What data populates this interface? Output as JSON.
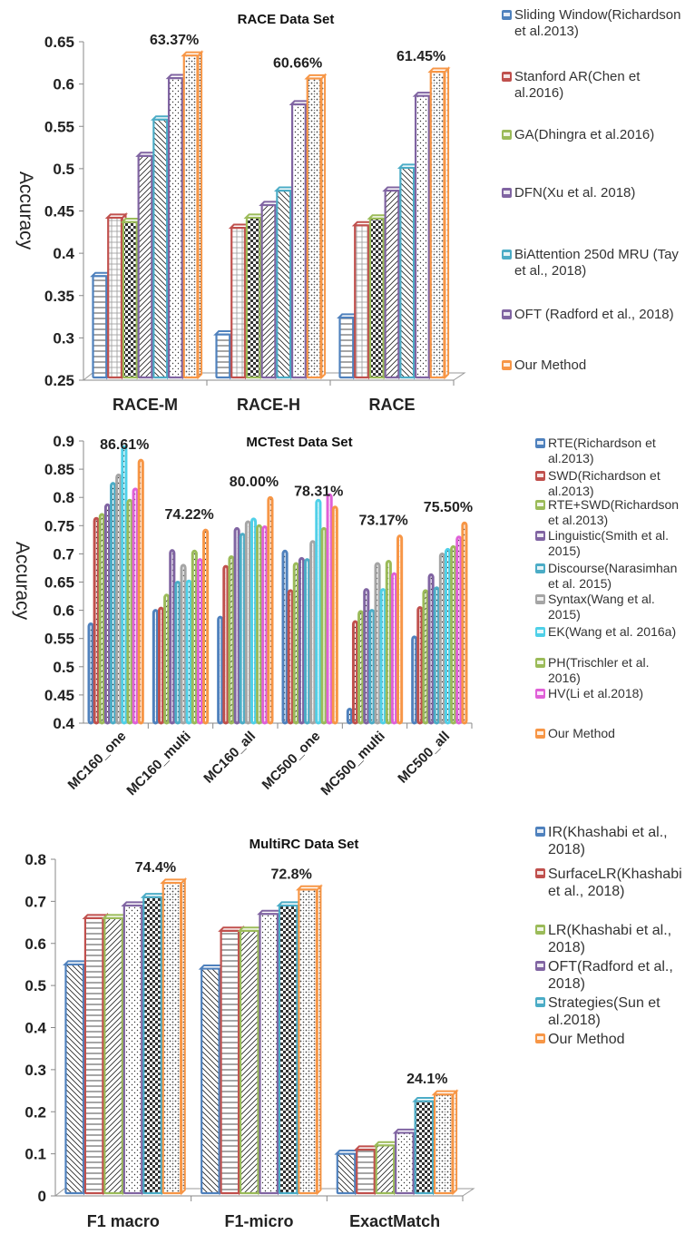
{
  "chart_data": [
    {
      "type": "bar",
      "title": "RACE Data Set",
      "ylabel": "Accuracy",
      "xlabel": "",
      "ylim": [
        0.25,
        0.65
      ],
      "yticks": [
        "0.25",
        "0.3",
        "0.35",
        "0.4",
        "0.45",
        "0.5",
        "0.55",
        "0.6",
        "0.65"
      ],
      "categories": [
        "RACE-M",
        "RACE-H",
        "RACE"
      ],
      "legend_position": "right",
      "grid": false,
      "series": [
        {
          "name": "Sliding Window(Richardson et al.2013)",
          "color": "#4f81bd",
          "values": [
            0.373,
            0.304,
            0.324
          ]
        },
        {
          "name": "Stanford AR(Chen et al.2016)",
          "color": "#c0504d",
          "values": [
            0.442,
            0.43,
            0.433
          ]
        },
        {
          "name": "GA(Dhingra et al.2016)",
          "color": "#9bbb59",
          "values": [
            0.437,
            0.442,
            0.441
          ]
        },
        {
          "name": "DFN(Xu et al. 2018)",
          "color": "#8064a2",
          "values": [
            0.515,
            0.457,
            0.474
          ]
        },
        {
          "name": "BiAttention 250d MRU (Tay et al., 2018)",
          "color": "#4bacc6",
          "values": [
            0.558,
            0.474,
            0.501
          ]
        },
        {
          "name": "OFT (Radford et al., 2018)",
          "color": "#8064a2",
          "values": [
            0.607,
            0.576,
            0.586
          ]
        },
        {
          "name": "Our Method",
          "color": "#f79646",
          "values": [
            0.6337,
            0.6066,
            0.6145
          ]
        }
      ],
      "annotations": [
        "63.37%",
        "60.66%",
        "61.45%"
      ]
    },
    {
      "type": "bar",
      "title": "MCTest Data Set",
      "ylabel": "Accuracy",
      "xlabel": "",
      "ylim": [
        0.4,
        0.9
      ],
      "yticks": [
        "0.4",
        "0.45",
        "0.5",
        "0.55",
        "0.6",
        "0.65",
        "0.7",
        "0.75",
        "0.8",
        "0.85",
        "0.9"
      ],
      "categories": [
        "MC160_one",
        "MC160_multi",
        "MC160_all",
        "MC500_one",
        "MC500_multi",
        "MC500_all"
      ],
      "legend_position": "right",
      "grid": false,
      "series": [
        {
          "name": "RTE(Richardson et al.2013)",
          "color": "#4f81bd",
          "values": [
            0.576,
            0.6,
            0.588,
            0.705,
            0.425,
            0.553
          ]
        },
        {
          "name": "SWD(Richardson et al.2013)",
          "color": "#c0504d",
          "values": [
            0.763,
            0.604,
            0.678,
            0.635,
            0.58,
            0.605
          ]
        },
        {
          "name": "RTE+SWD(Richardson et al.2013)",
          "color": "#9bbb59",
          "values": [
            0.77,
            0.627,
            0.695,
            0.683,
            0.598,
            0.635
          ]
        },
        {
          "name": "Linguistic(Smith et al. 2015)",
          "color": "#8064a2",
          "values": [
            0.787,
            0.706,
            0.745,
            0.692,
            0.637,
            0.663
          ]
        },
        {
          "name": "Discourse(Narasimhan et al. 2015)",
          "color": "#4bacc6",
          "values": [
            0.825,
            0.65,
            0.735,
            0.69,
            0.6,
            0.64
          ]
        },
        {
          "name": "Syntax(Wang et al. 2015)",
          "color": "#a5a5a5",
          "values": [
            0.84,
            0.68,
            0.757,
            0.722,
            0.683,
            0.7
          ]
        },
        {
          "name": "EK(Wang et al. 2016a)",
          "color": "#4fd0e8",
          "values": [
            0.89,
            0.652,
            0.762,
            0.795,
            0.637,
            0.708
          ]
        },
        {
          "name": "PH(Trischler et al. 2016)",
          "color": "#9bbb59",
          "values": [
            0.795,
            0.705,
            0.75,
            0.745,
            0.687,
            0.713
          ]
        },
        {
          "name": "HV(Li et al.2018)",
          "color": "#e060d8",
          "values": [
            0.815,
            0.69,
            0.748,
            0.805,
            0.665,
            0.73
          ]
        },
        {
          "name": "Our Method",
          "color": "#f79646",
          "values": [
            0.8661,
            0.7422,
            0.8,
            0.7831,
            0.7317,
            0.755
          ]
        }
      ],
      "annotations": [
        "86.61%",
        "74.22%",
        "80.00%",
        "78.31%",
        "73.17%",
        "75.50%"
      ]
    },
    {
      "type": "bar",
      "title": "MultiRC Data Set",
      "ylabel": "",
      "xlabel": "",
      "ylim": [
        0,
        0.8
      ],
      "yticks": [
        "0",
        "0.1",
        "0.2",
        "0.3",
        "0.4",
        "0.5",
        "0.6",
        "0.7",
        "0.8"
      ],
      "categories": [
        "F1  macro",
        "F1-micro",
        "ExactMatch"
      ],
      "legend_position": "right",
      "grid": false,
      "series": [
        {
          "name": "IR(Khashabi et al., 2018)",
          "color": "#4f81bd",
          "values": [
            0.55,
            0.54,
            0.1
          ]
        },
        {
          "name": "SurfaceLR(Khashabi et al., 2018)",
          "color": "#c0504d",
          "values": [
            0.66,
            0.63,
            0.11
          ]
        },
        {
          "name": "LR(Khashabi et al., 2018)",
          "color": "#9bbb59",
          "values": [
            0.66,
            0.63,
            0.12
          ]
        },
        {
          "name": "OFT(Radford et al., 2018)",
          "color": "#8064a2",
          "values": [
            0.69,
            0.67,
            0.15
          ]
        },
        {
          "name": "Strategies(Sun et al.2018)",
          "color": "#4bacc6",
          "values": [
            0.71,
            0.69,
            0.225
          ]
        },
        {
          "name": "Our Method",
          "color": "#f79646",
          "values": [
            0.744,
            0.728,
            0.241
          ]
        }
      ],
      "annotations": [
        "74.4%",
        "72.8%",
        "24.1%"
      ]
    }
  ]
}
